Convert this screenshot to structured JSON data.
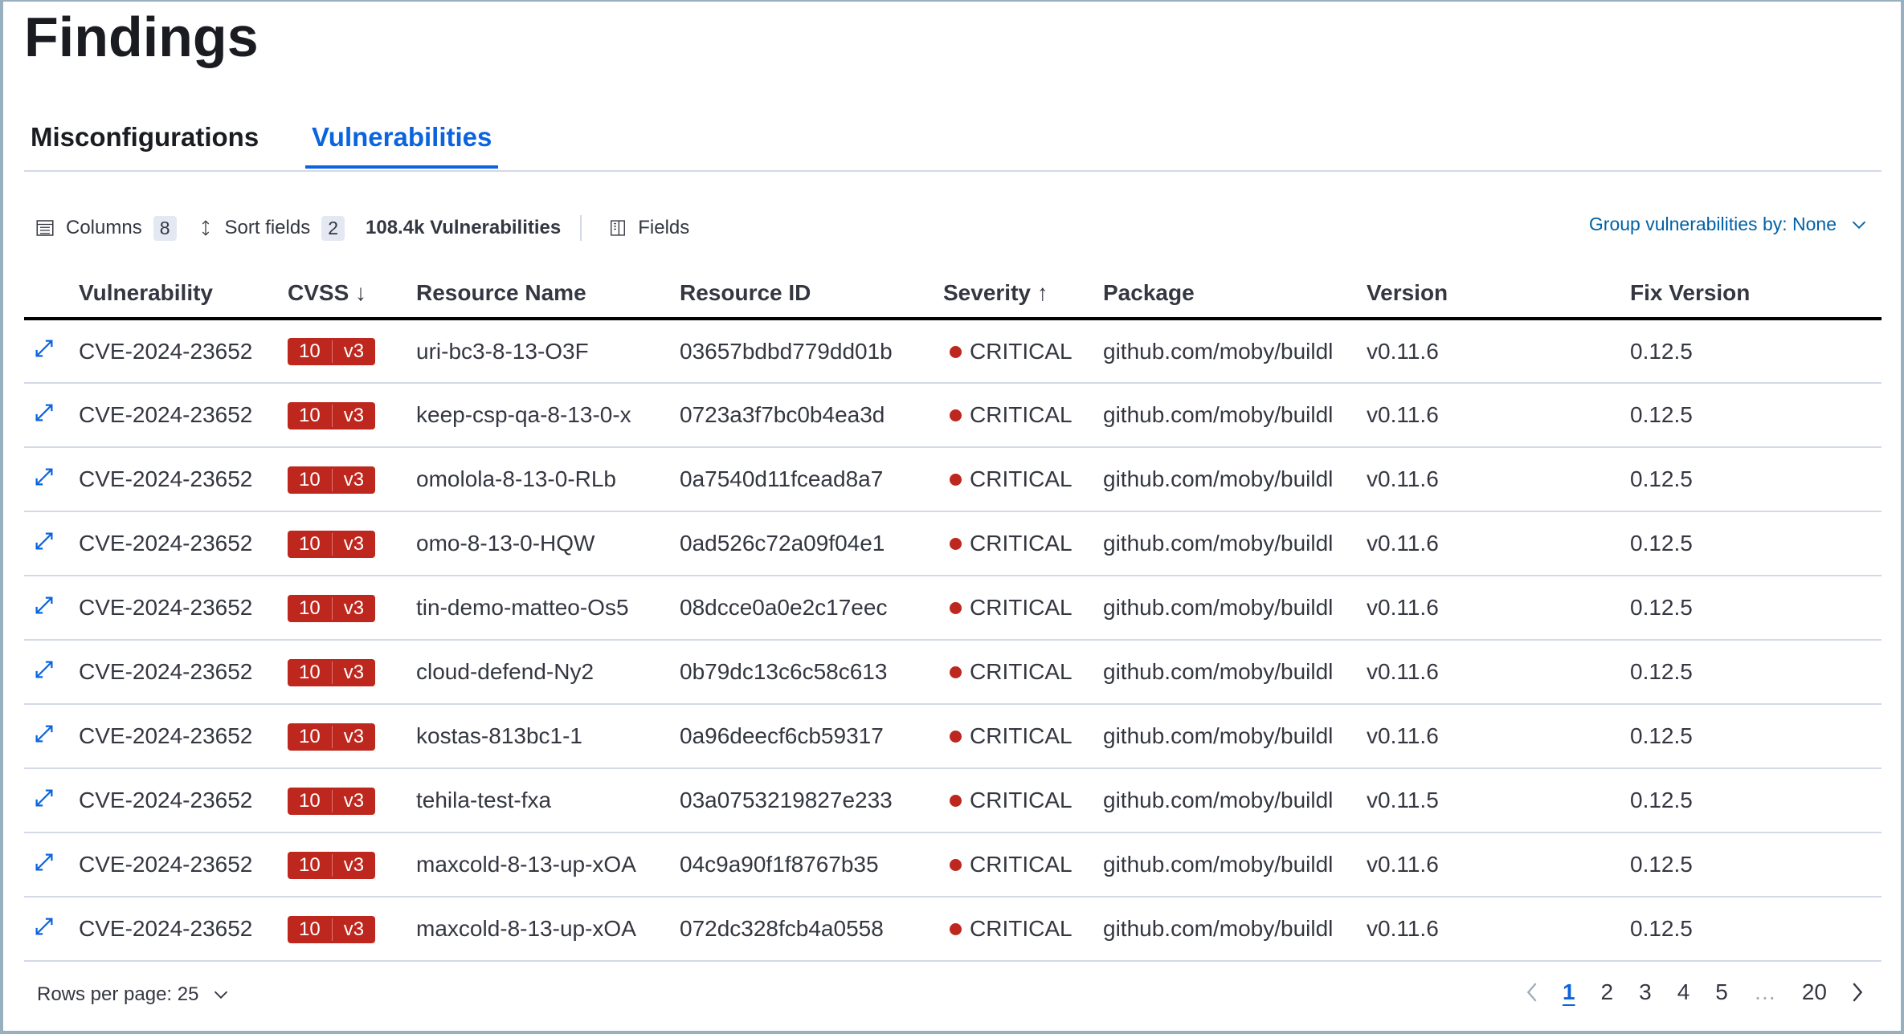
{
  "title": "Findings",
  "tabs": [
    {
      "label": "Misconfigurations"
    },
    {
      "label": "Vulnerabilities",
      "active": true
    }
  ],
  "toolbar": {
    "columns_label": "Columns",
    "columns_count": "8",
    "sort_label": "Sort fields",
    "sort_count": "2",
    "total": "108.4k Vulnerabilities",
    "fields_label": "Fields",
    "group_by": "Group vulnerabilities by: None"
  },
  "columns": [
    "Vulnerability",
    "CVSS",
    "Resource Name",
    "Resource ID",
    "Severity",
    "Package",
    "Version",
    "Fix Version"
  ],
  "sort_icons": {
    "cvss": "↓",
    "severity": "↑"
  },
  "rows": [
    {
      "vuln": "CVE-2024-23652",
      "score": "10",
      "cvss_ver": "v3",
      "name": "uri-bc3-8-13-O3F",
      "id": "03657bdbd779dd01b",
      "severity": "CRITICAL",
      "package": "github.com/moby/buildl",
      "version": "v0.11.6",
      "fix": "0.12.5"
    },
    {
      "vuln": "CVE-2024-23652",
      "score": "10",
      "cvss_ver": "v3",
      "name": "keep-csp-qa-8-13-0-x",
      "id": "0723a3f7bc0b4ea3d",
      "severity": "CRITICAL",
      "package": "github.com/moby/buildl",
      "version": "v0.11.6",
      "fix": "0.12.5"
    },
    {
      "vuln": "CVE-2024-23652",
      "score": "10",
      "cvss_ver": "v3",
      "name": "omolola-8-13-0-RLb",
      "id": "0a7540d11fcead8a7",
      "severity": "CRITICAL",
      "package": "github.com/moby/buildl",
      "version": "v0.11.6",
      "fix": "0.12.5"
    },
    {
      "vuln": "CVE-2024-23652",
      "score": "10",
      "cvss_ver": "v3",
      "name": "omo-8-13-0-HQW",
      "id": "0ad526c72a09f04e1",
      "severity": "CRITICAL",
      "package": "github.com/moby/buildl",
      "version": "v0.11.6",
      "fix": "0.12.5"
    },
    {
      "vuln": "CVE-2024-23652",
      "score": "10",
      "cvss_ver": "v3",
      "name": "tin-demo-matteo-Os5",
      "id": "08dcce0a0e2c17eec",
      "severity": "CRITICAL",
      "package": "github.com/moby/buildl",
      "version": "v0.11.6",
      "fix": "0.12.5"
    },
    {
      "vuln": "CVE-2024-23652",
      "score": "10",
      "cvss_ver": "v3",
      "name": "cloud-defend-Ny2",
      "id": "0b79dc13c6c58c613",
      "severity": "CRITICAL",
      "package": "github.com/moby/buildl",
      "version": "v0.11.6",
      "fix": "0.12.5"
    },
    {
      "vuln": "CVE-2024-23652",
      "score": "10",
      "cvss_ver": "v3",
      "name": "kostas-813bc1-1",
      "id": "0a96deecf6cb59317",
      "severity": "CRITICAL",
      "package": "github.com/moby/buildl",
      "version": "v0.11.6",
      "fix": "0.12.5"
    },
    {
      "vuln": "CVE-2024-23652",
      "score": "10",
      "cvss_ver": "v3",
      "name": "tehila-test-fxa",
      "id": "03a0753219827e233",
      "severity": "CRITICAL",
      "package": "github.com/moby/buildl",
      "version": "v0.11.5",
      "fix": "0.12.5"
    },
    {
      "vuln": "CVE-2024-23652",
      "score": "10",
      "cvss_ver": "v3",
      "name": "maxcold-8-13-up-xOA",
      "id": "04c9a90f1f8767b35",
      "severity": "CRITICAL",
      "package": "github.com/moby/buildl",
      "version": "v0.11.6",
      "fix": "0.12.5"
    },
    {
      "vuln": "CVE-2024-23652",
      "score": "10",
      "cvss_ver": "v3",
      "name": "maxcold-8-13-up-xOA",
      "id": "072dc328fcb4a0558",
      "severity": "CRITICAL",
      "package": "github.com/moby/buildl",
      "version": "v0.11.6",
      "fix": "0.12.5"
    }
  ],
  "footer": {
    "rows_per_page": "Rows per page: 25"
  },
  "pagination": {
    "pages": [
      "1",
      "2",
      "3",
      "4",
      "5"
    ],
    "ellipsis": "…",
    "last": "20",
    "current": "1"
  },
  "colors": {
    "accent": "#0b64dd",
    "critical": "#bd271e"
  }
}
